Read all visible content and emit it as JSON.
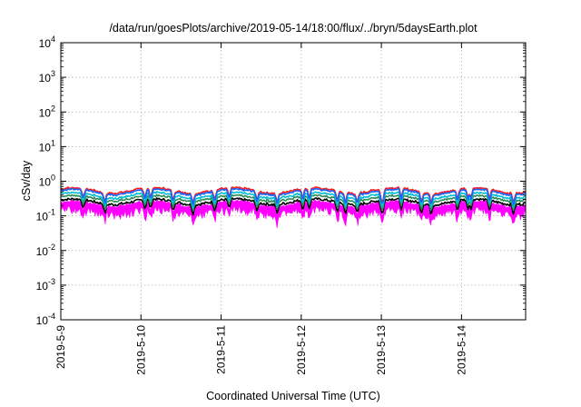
{
  "chart_data": {
    "type": "line",
    "title": "/data/run/goesPlots/archive/2019-05-14/18:00/flux/../bryn/5daysEarth.plot",
    "xlabel": "Coordinated Universal Time (UTC)",
    "ylabel": "cSv/day",
    "yscale": "log",
    "ylim": [
      0.0001,
      10000
    ],
    "xlim": [
      0,
      5.8
    ],
    "grid": true,
    "y_ticks": [
      {
        "base": "10",
        "exp": "-4",
        "value": 0.0001
      },
      {
        "base": "10",
        "exp": "-3",
        "value": 0.001
      },
      {
        "base": "10",
        "exp": "-2",
        "value": 0.01
      },
      {
        "base": "10",
        "exp": "-1",
        "value": 0.1
      },
      {
        "base": "10",
        "exp": "0",
        "value": 1
      },
      {
        "base": "10",
        "exp": "1",
        "value": 10
      },
      {
        "base": "10",
        "exp": "2",
        "value": 100
      },
      {
        "base": "10",
        "exp": "3",
        "value": 1000
      },
      {
        "base": "10",
        "exp": "4",
        "value": 10000
      }
    ],
    "x_ticks": [
      {
        "label": "2019-5-9",
        "value": 0
      },
      {
        "label": "2019-5-10",
        "value": 1
      },
      {
        "label": "2019-5-11",
        "value": 2
      },
      {
        "label": "2019-5-12",
        "value": 3
      },
      {
        "label": "2019-5-13",
        "value": 4
      },
      {
        "label": "2019-5-14",
        "value": 5
      }
    ],
    "series": [
      {
        "color": "#ff00ff",
        "base": 0.2,
        "envelope": true
      },
      {
        "color": "#000000",
        "base": 0.26
      },
      {
        "color": "#2e8b57",
        "base": 0.33
      },
      {
        "color": "#00bcd4",
        "base": 0.4
      },
      {
        "color": "#ff1a1a",
        "base": 0.55
      },
      {
        "color": "#1565ff",
        "base": 0.5
      }
    ]
  }
}
